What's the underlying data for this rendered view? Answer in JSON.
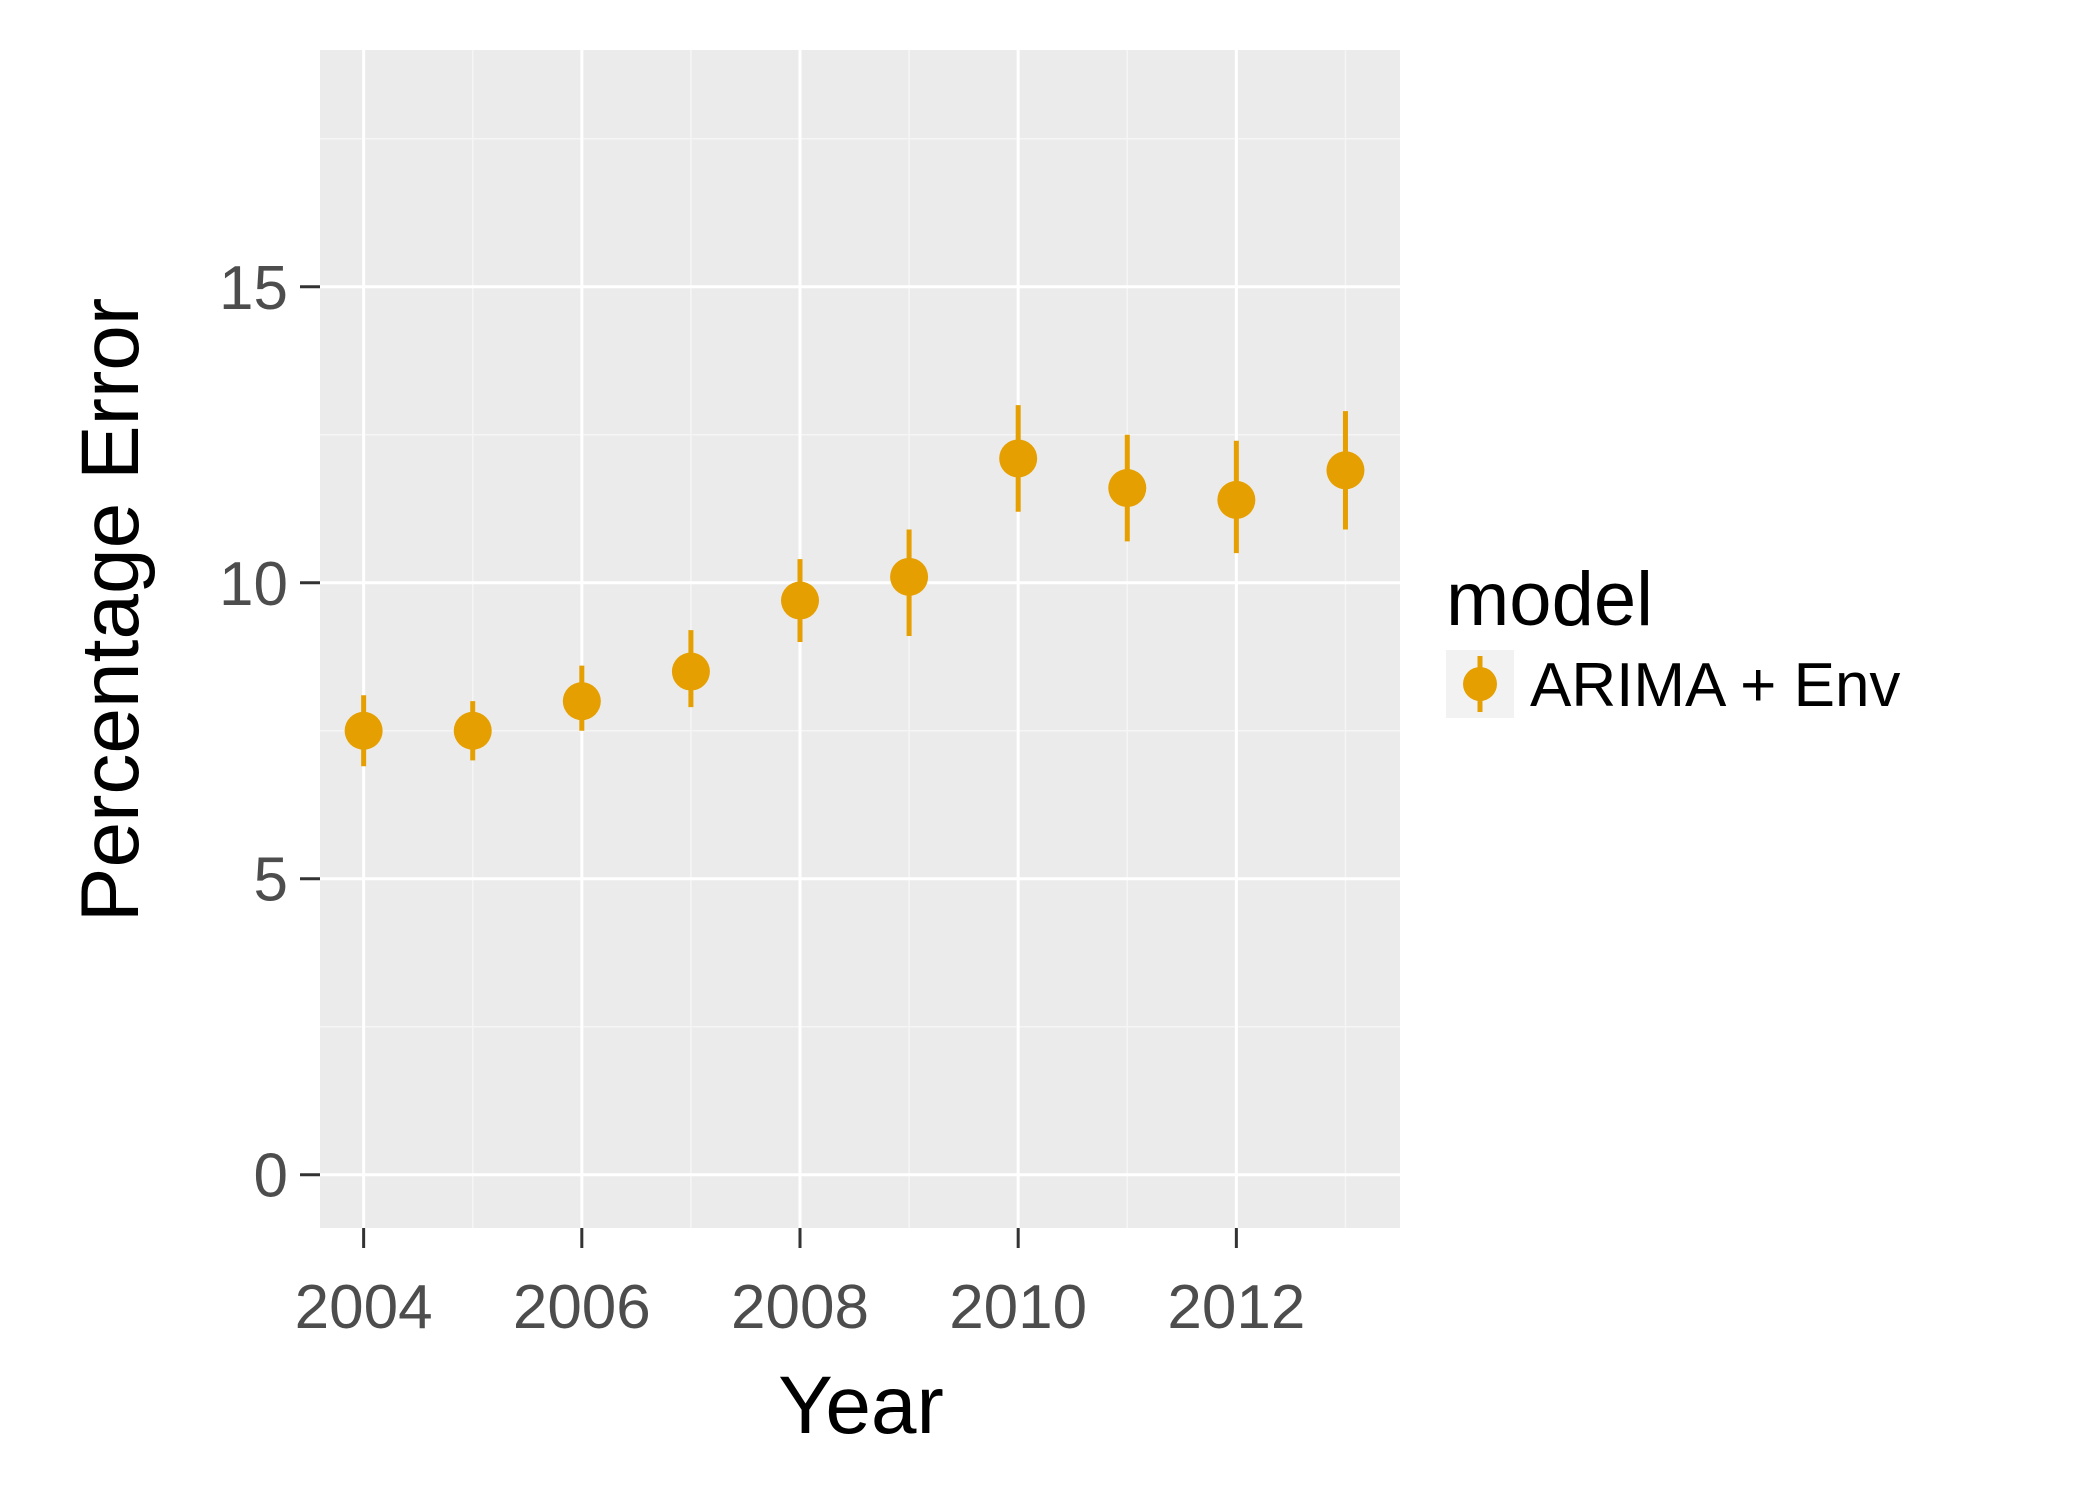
{
  "chart_data": {
    "type": "scatter",
    "title": "",
    "xlabel": "Year",
    "ylabel": "Percentage Error",
    "xlim": [
      2003.6,
      2013.5
    ],
    "ylim": [
      -0.9,
      19
    ],
    "x_ticks": [
      2004,
      2006,
      2008,
      2010,
      2012
    ],
    "y_ticks": [
      0,
      5,
      10,
      15
    ],
    "grid": true,
    "legend": {
      "title": "model",
      "position": "right"
    },
    "series": [
      {
        "name": "ARIMA + Env",
        "color": "#E69F00",
        "points": [
          {
            "x": 2004,
            "y": 7.5,
            "ymin": 6.9,
            "ymax": 8.1
          },
          {
            "x": 2005,
            "y": 7.5,
            "ymin": 7.0,
            "ymax": 8.0
          },
          {
            "x": 2006,
            "y": 8.0,
            "ymin": 7.5,
            "ymax": 8.6
          },
          {
            "x": 2007,
            "y": 8.5,
            "ymin": 7.9,
            "ymax": 9.2
          },
          {
            "x": 2008,
            "y": 9.7,
            "ymin": 9.0,
            "ymax": 10.4
          },
          {
            "x": 2009,
            "y": 10.1,
            "ymin": 9.1,
            "ymax": 10.9
          },
          {
            "x": 2010,
            "y": 12.1,
            "ymin": 11.2,
            "ymax": 13.0
          },
          {
            "x": 2011,
            "y": 11.6,
            "ymin": 10.7,
            "ymax": 12.5
          },
          {
            "x": 2012,
            "y": 11.4,
            "ymin": 10.5,
            "ymax": 12.4
          },
          {
            "x": 2013,
            "y": 11.9,
            "ymin": 10.9,
            "ymax": 12.9
          }
        ]
      }
    ]
  }
}
